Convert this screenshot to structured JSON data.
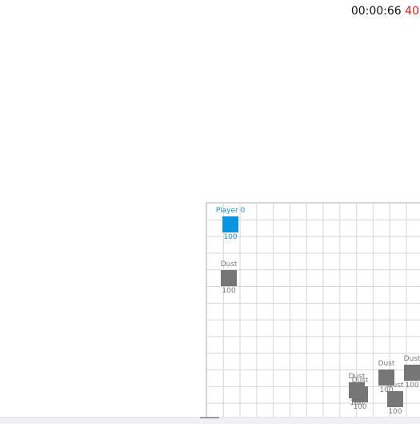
{
  "hud": {
    "timer": "00:00:66",
    "fps": "40",
    "fps_color": "#e21a1a"
  },
  "colors": {
    "player": "#0b93e0",
    "dust": "#767676",
    "grid_line": "#d6d6d6"
  },
  "player": {
    "name": "Player 0",
    "hp": "100"
  },
  "dust": [
    {
      "name": "Dust",
      "hp": "100"
    },
    {
      "name": "Dust",
      "hp": "100"
    },
    {
      "name": "Dust",
      "hp": "100"
    },
    {
      "name": "Dust",
      "hp": "100"
    },
    {
      "name": "Dust",
      "hp": "100"
    },
    {
      "name": "Dust",
      "hp": "100"
    }
  ]
}
